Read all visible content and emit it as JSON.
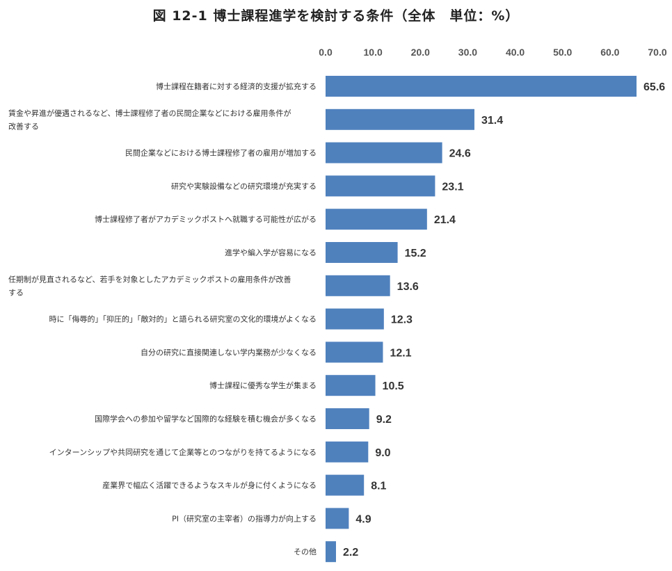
{
  "chart_data": {
    "type": "bar",
    "orientation": "horizontal",
    "title": "図 12-1 博士課程進学を検討する条件（全体　単位：%）",
    "xlim": [
      0,
      70
    ],
    "ticks": [
      "0.0",
      "10.0",
      "20.0",
      "30.0",
      "40.0",
      "50.0",
      "60.0",
      "70.0"
    ],
    "tick_values": [
      0,
      10,
      20,
      30,
      40,
      50,
      60,
      70
    ],
    "axis_position": "top",
    "bar_color": "#4f81bd",
    "categories": [
      [
        "博士課程在籍者に対する経済的支援が拡充する"
      ],
      [
        "賃金や昇進が優遇されるなど、博士課程修了者の民間企業などにおける雇用条件が",
        "改善する"
      ],
      [
        "民間企業などにおける博士課程修了者の雇用が増加する"
      ],
      [
        "研究や実験設備などの研究環境が充実する"
      ],
      [
        "博士課程修了者がアカデミックポストへ就職する可能性が広がる"
      ],
      [
        "進学や編入学が容易になる"
      ],
      [
        "任期制が見直されるなど、若手を対象としたアカデミックポストの雇用条件が改善",
        "する"
      ],
      [
        "時に「侮辱的」「抑圧的」「敵対的」と語られる研究室の文化的環境がよくなる"
      ],
      [
        "自分の研究に直接関連しない学内業務が少なくなる"
      ],
      [
        "博士課程に優秀な学生が集まる"
      ],
      [
        "国際学会への参加や留学など国際的な経験を積む機会が多くなる"
      ],
      [
        "インターンシップや共同研究を通じて企業等とのつながりを持てるようになる"
      ],
      [
        "産業界で幅広く活躍できるようなスキルが身に付くようになる"
      ],
      [
        "PI（研究室の主宰者）の指導力が向上する"
      ],
      [
        "その他"
      ]
    ],
    "values": [
      65.6,
      31.4,
      24.6,
      23.1,
      21.4,
      15.2,
      13.6,
      12.3,
      12.1,
      10.5,
      9.2,
      9.0,
      8.1,
      4.9,
      2.2
    ],
    "value_labels": [
      "65.6",
      "31.4",
      "24.6",
      "23.1",
      "21.4",
      "15.2",
      "13.6",
      "12.3",
      "12.1",
      "10.5",
      "9.2",
      "9.0",
      "8.1",
      "4.9",
      "2.2"
    ],
    "grid": false,
    "legend": "none"
  }
}
